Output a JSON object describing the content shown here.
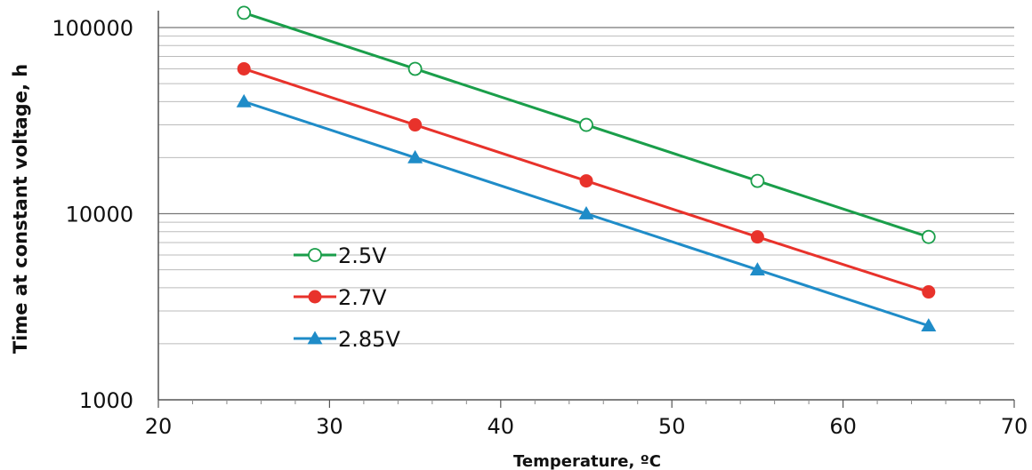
{
  "chart_data": {
    "type": "line",
    "title": "",
    "xlabel": "Temperature, ºC",
    "ylabel": "Time at constant voltage, h",
    "x_scale": "linear",
    "y_scale": "log",
    "xlim": [
      20,
      70
    ],
    "ylim": [
      1000,
      130000
    ],
    "x_ticks": [
      20,
      30,
      40,
      50,
      60,
      70
    ],
    "y_ticks": [
      1000,
      10000,
      100000
    ],
    "grid": "horizontal minor and major gridlines on log scale",
    "legend_position": "middle-left",
    "x": [
      25,
      35,
      45,
      55,
      65
    ],
    "series": [
      {
        "name": "2.5V",
        "color": "#1a9e4a",
        "marker": "open-circle",
        "values": [
          120000,
          60000,
          30000,
          15000,
          7500
        ]
      },
      {
        "name": "2.7V",
        "color": "#e8322b",
        "marker": "filled-circle",
        "values": [
          60000,
          30000,
          15000,
          7500,
          3800
        ]
      },
      {
        "name": "2.85V",
        "color": "#1f8cc8",
        "marker": "filled-triangle",
        "values": [
          40000,
          20000,
          10000,
          5000,
          2500
        ]
      }
    ]
  }
}
